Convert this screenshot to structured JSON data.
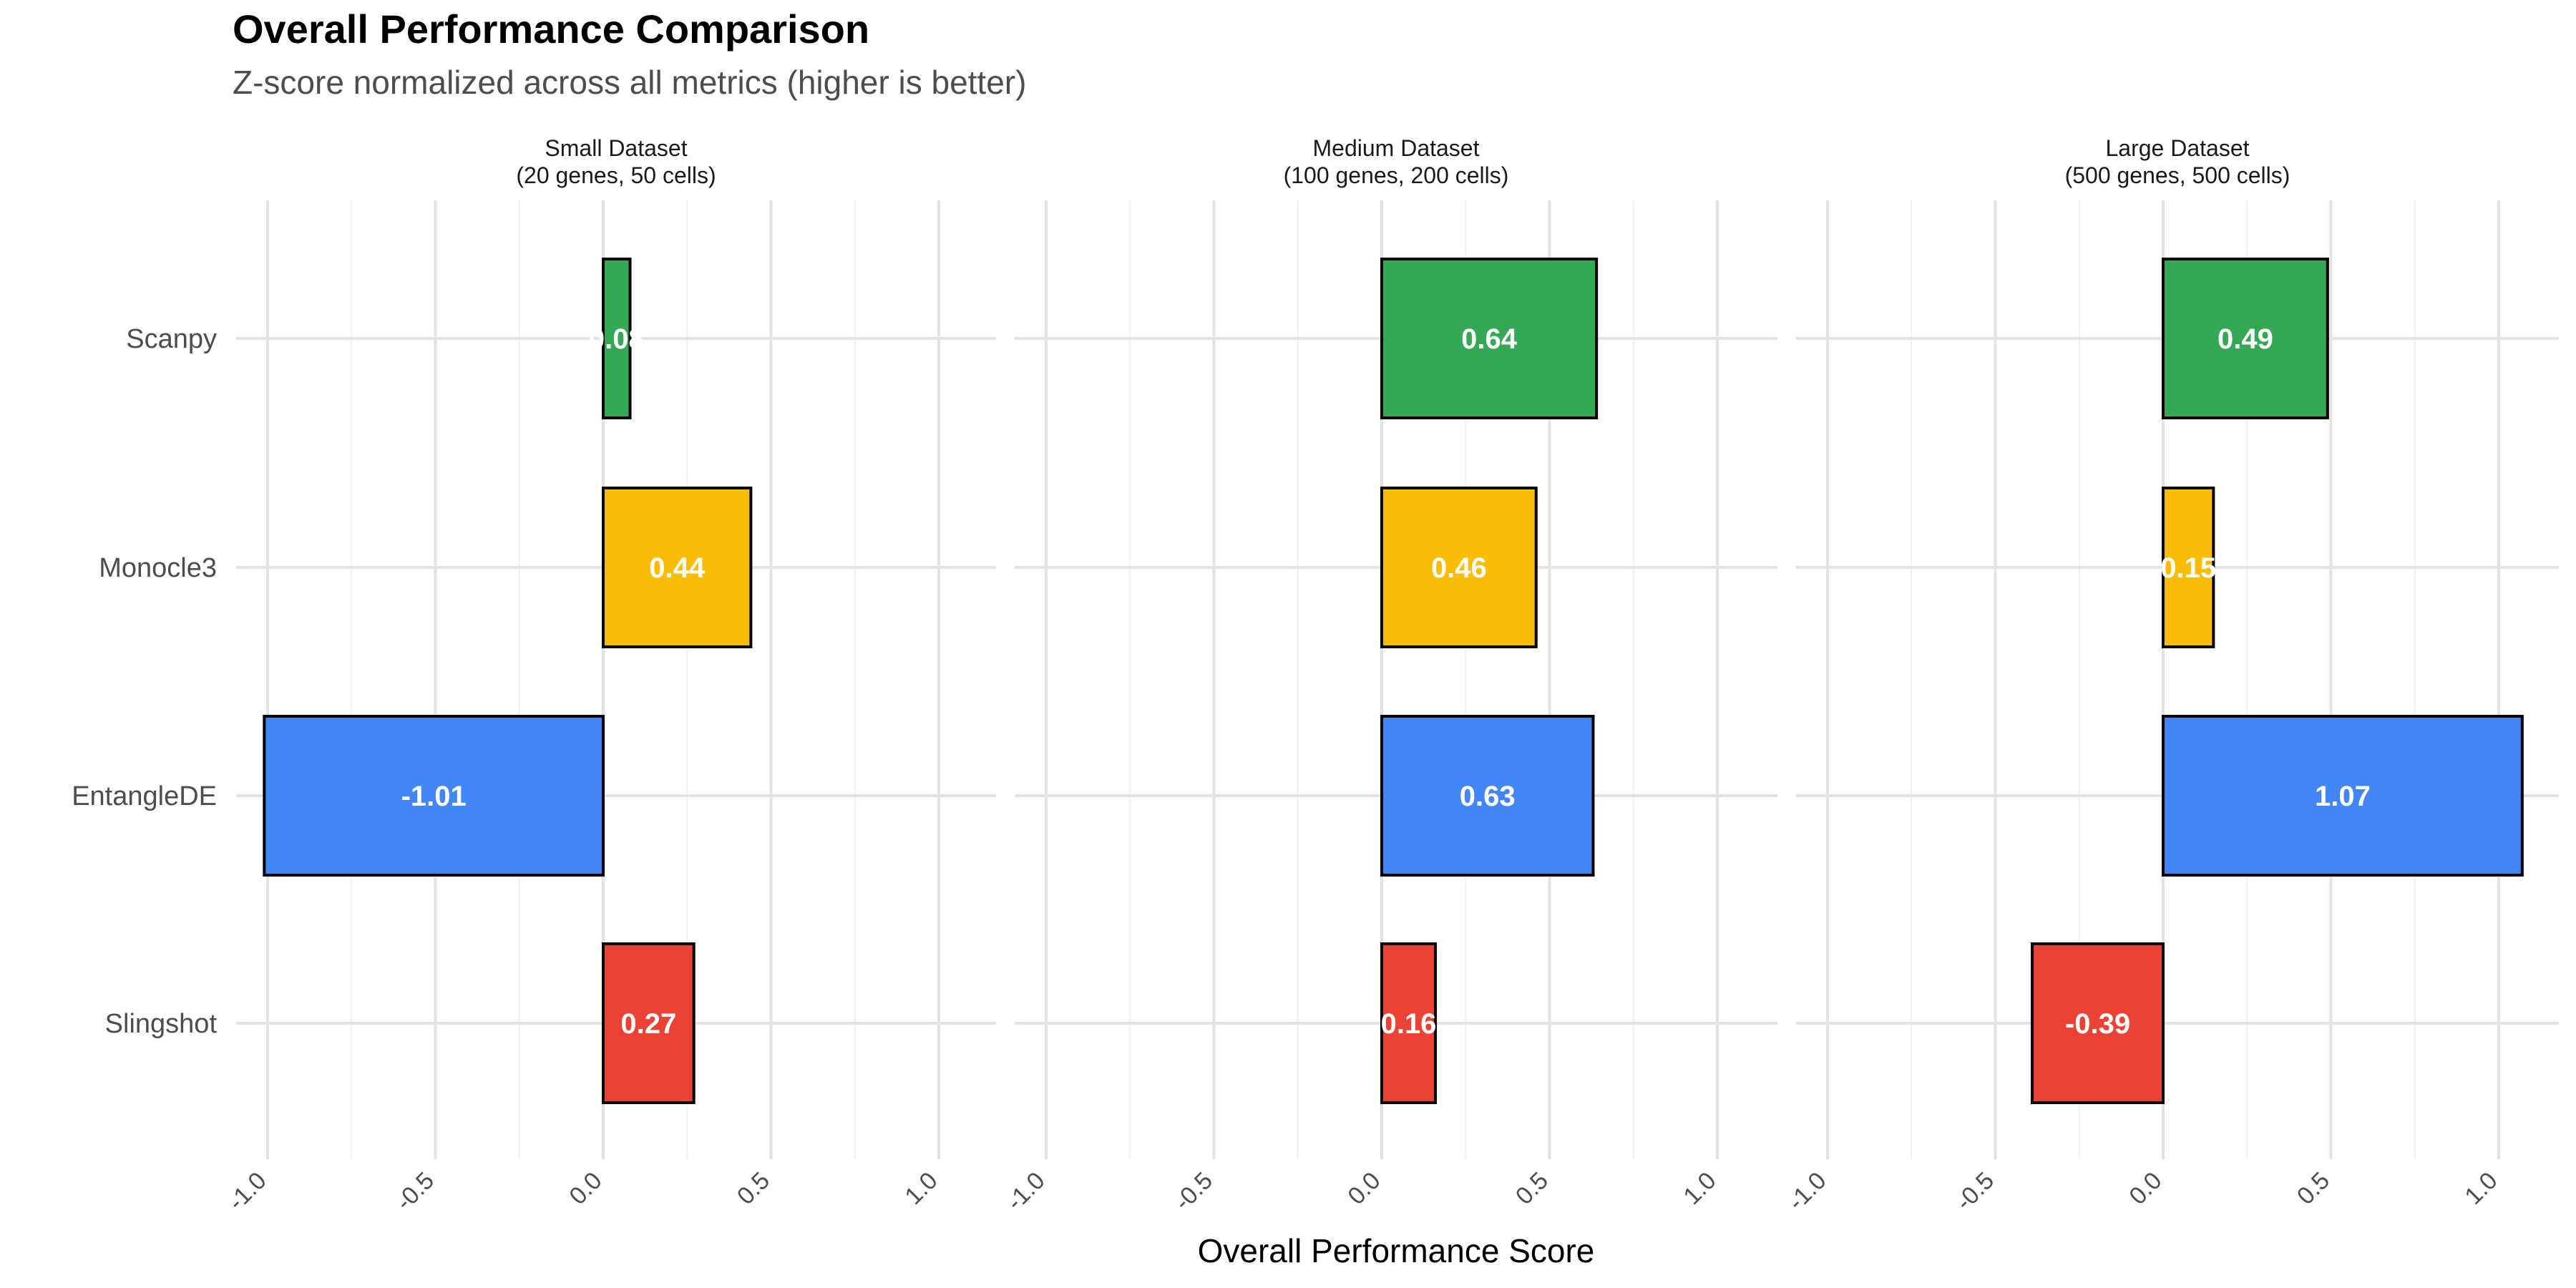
{
  "chart_data": {
    "type": "bar",
    "orientation": "horizontal",
    "title": "Overall Performance Comparison",
    "subtitle": "Z-score normalized across all metrics (higher is better)",
    "xlabel": "Overall Performance Score",
    "ylabel": "",
    "xlim": [
      -1.0,
      1.0
    ],
    "x_ticks": [
      "-1.0",
      "-0.5",
      "0.0",
      "0.5",
      "1.0"
    ],
    "grid": true,
    "legend": "none",
    "categories": [
      "Scanpy",
      "Monocle3",
      "EntangleDE",
      "Slingshot"
    ],
    "category_colors": {
      "Scanpy": "#34a853",
      "Monocle3": "#fbbc05",
      "EntangleDE": "#4285f4",
      "Slingshot": "#ea4335"
    },
    "panels": [
      {
        "title": "Small Dataset",
        "subtitle": "(20 genes, 50 cells)",
        "values": [
          0.08,
          0.44,
          -1.01,
          0.27
        ],
        "labels": [
          "0.08",
          "0.44",
          "-1.01",
          "0.27"
        ]
      },
      {
        "title": "Medium Dataset",
        "subtitle": "(100 genes, 200 cells)",
        "values": [
          0.64,
          0.46,
          0.63,
          0.16
        ],
        "labels": [
          "0.64",
          "0.46",
          "0.63",
          "0.16"
        ]
      },
      {
        "title": "Large Dataset",
        "subtitle": "(500 genes, 500 cells)",
        "values": [
          0.49,
          0.15,
          1.07,
          -0.39
        ],
        "labels": [
          "0.49",
          "0.15",
          "1.07",
          "-0.39"
        ]
      }
    ]
  }
}
